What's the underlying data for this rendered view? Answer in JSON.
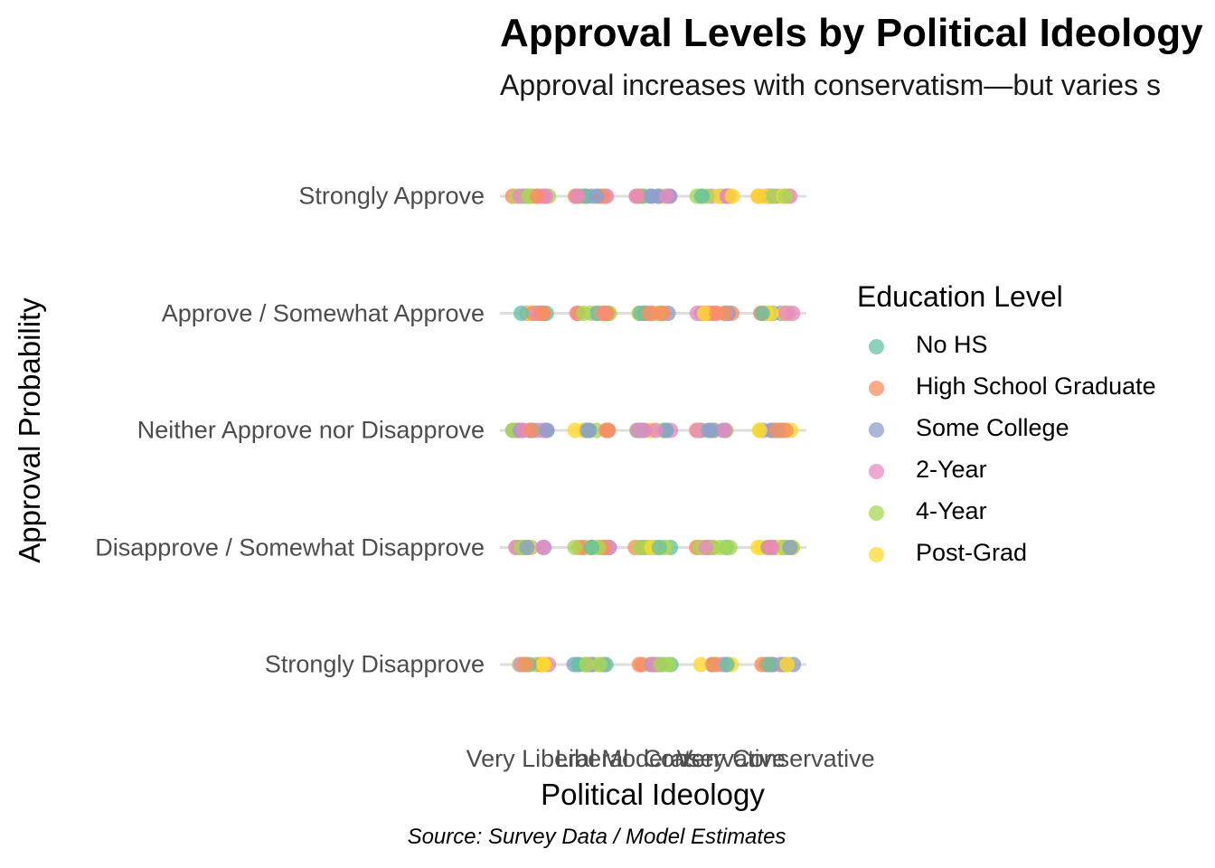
{
  "chart_data": {
    "type": "scatter",
    "title": "Approval Levels by Political Ideology",
    "subtitle": "Approval increases with conservatism—but varies s",
    "xlabel": "Political Ideology",
    "ylabel": "Approval Probability",
    "caption": "Source: Survey Data / Model Estimates",
    "x_categories": [
      "Very Liberal",
      "Liberal",
      "Moderate",
      "Conservative",
      "Very Conservative"
    ],
    "y_categories": [
      "Strongly Disapprove",
      "Disapprove / Somewhat Disapprove",
      "Neither Approve nor Disapprove",
      "Approve / Somewhat Approve",
      "Strongly Approve"
    ],
    "legend_title": "Education Level",
    "legend_position": "right",
    "grid": true,
    "jitter": "horizontal",
    "series": [
      {
        "name": "No HS",
        "color": "#66c2a5"
      },
      {
        "name": "High School Graduate",
        "color": "#fc8d62"
      },
      {
        "name": "Some College",
        "color": "#8da0cb"
      },
      {
        "name": "2-Year",
        "color": "#e78ac3"
      },
      {
        "name": "4-Year",
        "color": "#a6d854"
      },
      {
        "name": "Post-Grad",
        "color": "#ffd92f"
      }
    ]
  }
}
